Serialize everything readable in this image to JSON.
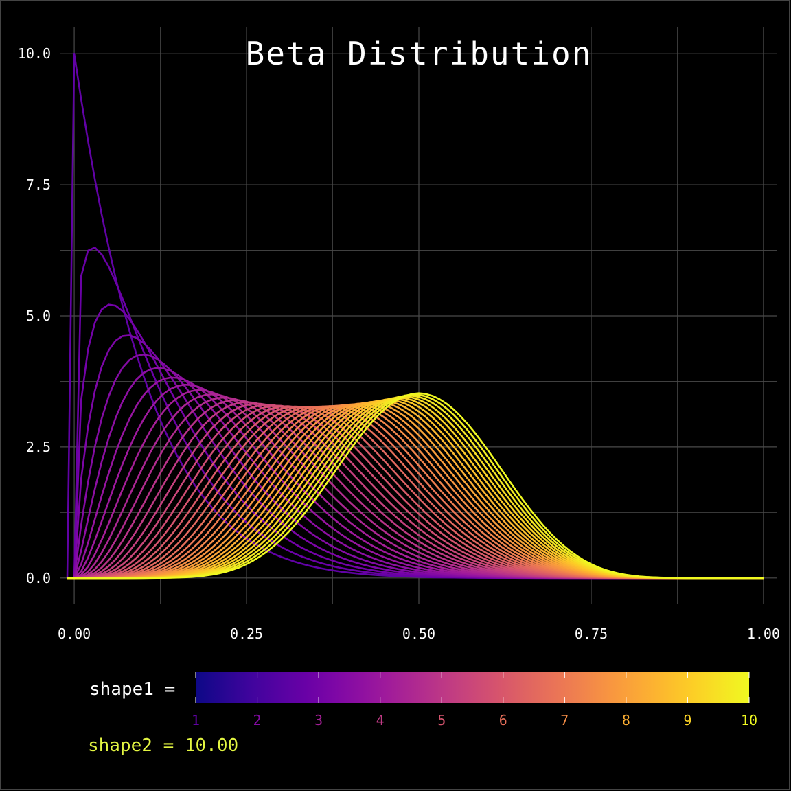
{
  "chart_data": {
    "type": "line",
    "title": "Beta Distribution",
    "xlabel": "",
    "ylabel": "",
    "xlim": [
      -0.02,
      1.02
    ],
    "ylim": [
      -0.5,
      10.5
    ],
    "x_ticks": [
      "0.00",
      "0.25",
      "0.50",
      "0.75",
      "1.00"
    ],
    "x_tick_values": [
      0,
      0.25,
      0.5,
      0.75,
      1.0
    ],
    "y_ticks": [
      "0.0",
      "2.5",
      "5.0",
      "7.5",
      "10.0"
    ],
    "y_tick_values": [
      0,
      2.5,
      5.0,
      7.5,
      10.0
    ],
    "grid": true,
    "distribution": "beta",
    "shape1_range": [
      1,
      10
    ],
    "shape1_curve_count": 37,
    "shape2": 10.0,
    "colormap": [
      "#0d0887",
      "#46039f",
      "#7201a8",
      "#9c179e",
      "#bd3786",
      "#d8576b",
      "#ed7953",
      "#fb9f3a",
      "#fdca26",
      "#f0f921"
    ],
    "legend": {
      "shape1_label": "shape1 =",
      "shape1_ticks": [
        "1",
        "2",
        "3",
        "4",
        "5",
        "6",
        "7",
        "8",
        "9",
        "10"
      ],
      "shape2_label": "shape2 = 10.00",
      "shape2_color": "#e3f542"
    },
    "colors": {
      "background": "#000000",
      "grid": "#4a4a4a",
      "text": "#ffffff"
    }
  }
}
